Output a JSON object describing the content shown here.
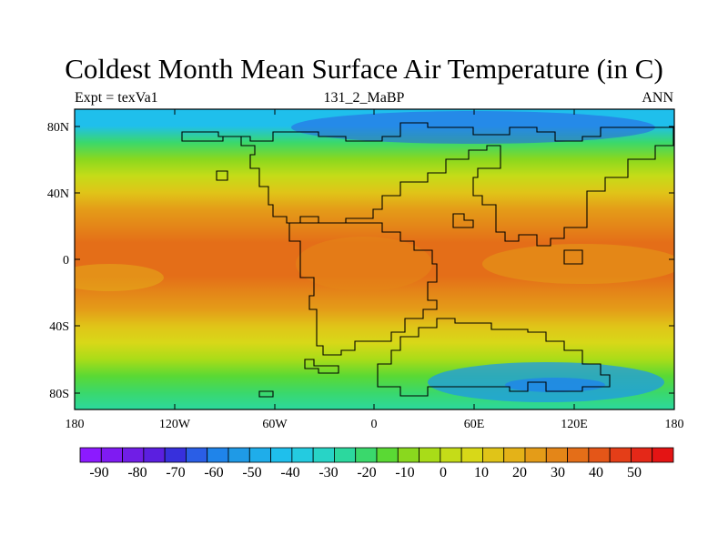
{
  "title": "Coldest Month Mean Surface Air Temperature (in C)",
  "subtitle_left": "Expt = texVa1",
  "subtitle_center": "131_2_MaBP",
  "subtitle_right": "ANN",
  "map": {
    "lon_ticks": [
      "180",
      "120W",
      "60W",
      "0",
      "60E",
      "120E",
      "180"
    ],
    "lat_ticks": [
      "80N",
      "40N",
      "0",
      "40S",
      "80S"
    ],
    "lat_tick_values": [
      80,
      40,
      0,
      -40,
      -80
    ]
  },
  "colorbar": {
    "labels": [
      "-90",
      "-80",
      "-70",
      "-60",
      "-50",
      "-40",
      "-30",
      "-20",
      "-10",
      "0",
      "10",
      "20",
      "30",
      "40",
      "50"
    ],
    "colors": [
      "#8c1aff",
      "#7f1bf2",
      "#701ee6",
      "#5b1fe0",
      "#3730dc",
      "#2a5ee6",
      "#1f84ea",
      "#1f9ae6",
      "#1fadea",
      "#1fbfec",
      "#24cbe0",
      "#28d4c6",
      "#2cd89e",
      "#3ad86c",
      "#5ad934",
      "#8ad81e",
      "#a9dc18",
      "#c5dc18",
      "#d8d818",
      "#e0c418",
      "#e4b218",
      "#e49c18",
      "#e48618",
      "#e46e18",
      "#e45618",
      "#e43e18",
      "#e42818",
      "#e41414"
    ]
  },
  "chart_data": {
    "type": "heatmap",
    "title": "Coldest Month Mean Surface Air Temperature (in C)",
    "units": "C",
    "x_range": [
      -180,
      180
    ],
    "y_range": [
      -90,
      90
    ],
    "lat_bands": [
      {
        "lat": 90,
        "value": -45
      },
      {
        "lat": 80,
        "value": -42
      },
      {
        "lat": 70,
        "value": -25
      },
      {
        "lat": 60,
        "value": -14
      },
      {
        "lat": 50,
        "value": -2
      },
      {
        "lat": 40,
        "value": 8
      },
      {
        "lat": 30,
        "value": 16
      },
      {
        "lat": 20,
        "value": 23
      },
      {
        "lat": 10,
        "value": 27
      },
      {
        "lat": 0,
        "value": 28
      },
      {
        "lat": -10,
        "value": 25
      },
      {
        "lat": -20,
        "value": 22
      },
      {
        "lat": -30,
        "value": 17
      },
      {
        "lat": -40,
        "value": 9
      },
      {
        "lat": -50,
        "value": 2
      },
      {
        "lat": -60,
        "value": -6
      },
      {
        "lat": -70,
        "value": -18
      },
      {
        "lat": -80,
        "value": -25
      },
      {
        "lat": -90,
        "value": -30
      }
    ],
    "colorbar_range": [
      -90,
      50
    ],
    "colorbar_step": 5
  }
}
